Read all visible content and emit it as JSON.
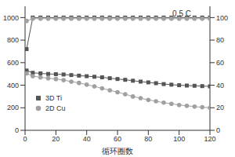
{
  "chart_data": {
    "type": "line",
    "x_label": "循环圈数",
    "annotations": [
      "0.5 C"
    ],
    "x": [
      1,
      5,
      10,
      15,
      20,
      25,
      30,
      35,
      40,
      45,
      50,
      55,
      60,
      65,
      70,
      75,
      80,
      85,
      90,
      95,
      100,
      105,
      110,
      115,
      120
    ],
    "xlim": [
      0,
      120
    ],
    "xticks": [
      0,
      20,
      40,
      60,
      80,
      100,
      120
    ],
    "ylim": [
      0,
      1100
    ],
    "yticks": [
      0,
      200,
      400,
      600,
      800,
      1000
    ],
    "y2lim": [
      0,
      110
    ],
    "y2ticks": [
      0,
      20,
      40,
      60,
      80,
      100
    ],
    "legend": "lower left",
    "series": [
      {
        "name": "3D Ti",
        "color": "#555555",
        "marker": "square",
        "values": [
          530,
          510,
          505,
          500,
          498,
          495,
          490,
          485,
          480,
          475,
          470,
          462,
          455,
          448,
          440,
          432,
          425,
          418,
          410,
          405,
          400,
          397,
          395,
          392,
          390
        ]
      },
      {
        "name": "2D Cu",
        "color": "#a0a0a0",
        "marker": "circle",
        "values": [
          505,
          480,
          470,
          462,
          455,
          445,
          432,
          420,
          405,
          390,
          372,
          355,
          338,
          320,
          300,
          285,
          270,
          258,
          245,
          235,
          225,
          218,
          210,
          205,
          200
        ]
      },
      {
        "name": "3D Ti",
        "color": "#555555",
        "marker": "square",
        "axis": "y2",
        "values": [
          72,
          100,
          100,
          100,
          100,
          100,
          100,
          100,
          100,
          100,
          100,
          100,
          100,
          100,
          100,
          100,
          100,
          100,
          100,
          100,
          100,
          100,
          100,
          100,
          100
        ]
      },
      {
        "name": "2D Cu",
        "color": "#a0a0a0",
        "marker": "circle",
        "axis": "y2",
        "values": [
          97,
          99,
          99,
          99,
          99,
          99,
          99,
          99,
          99,
          99,
          99,
          99,
          99,
          99,
          99,
          99,
          99,
          99,
          99,
          99,
          99,
          99,
          99,
          99,
          99
        ]
      }
    ]
  }
}
